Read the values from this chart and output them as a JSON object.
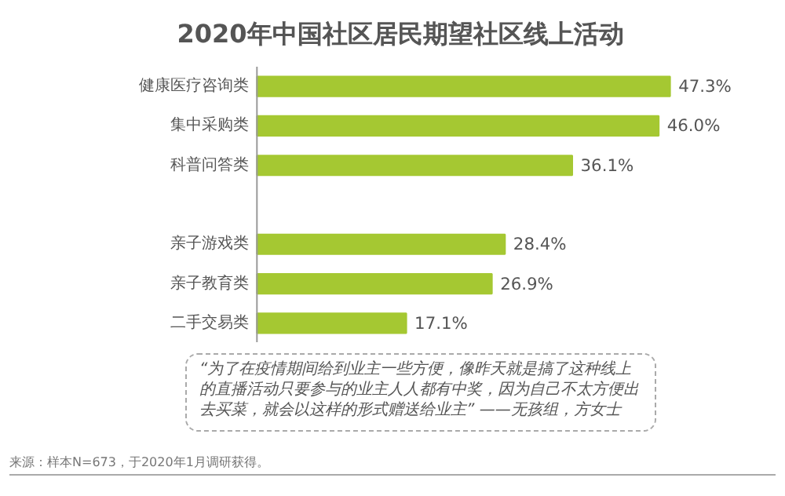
{
  "chart_data": {
    "type": "bar",
    "orientation": "horizontal",
    "title": "2020年中国社区居民期望社区线上活动",
    "categories": [
      "健康医疗咨询类",
      "集中采购类",
      "科普问答类",
      null,
      "亲子游戏类",
      "亲子教育类",
      "二手交易类"
    ],
    "values": [
      47.3,
      46.0,
      36.1,
      null,
      28.4,
      26.9,
      17.1
    ],
    "value_labels": [
      "47.3%",
      "46.0%",
      "36.1%",
      null,
      "28.4%",
      "26.9%",
      "17.1%"
    ],
    "color": "#a5c832",
    "annotations": [
      "“为了在疫情期间给到业主一些方便，像昨天就是搞了这种线上的直播活动只要参与的业主人人都有中奖，因为自己不太方便出去买菜，就会以这样的形式赠送给业主” ——无孩组，方女士",
      "来源：样本N=673，于2020年1月调研获得。"
    ]
  }
}
